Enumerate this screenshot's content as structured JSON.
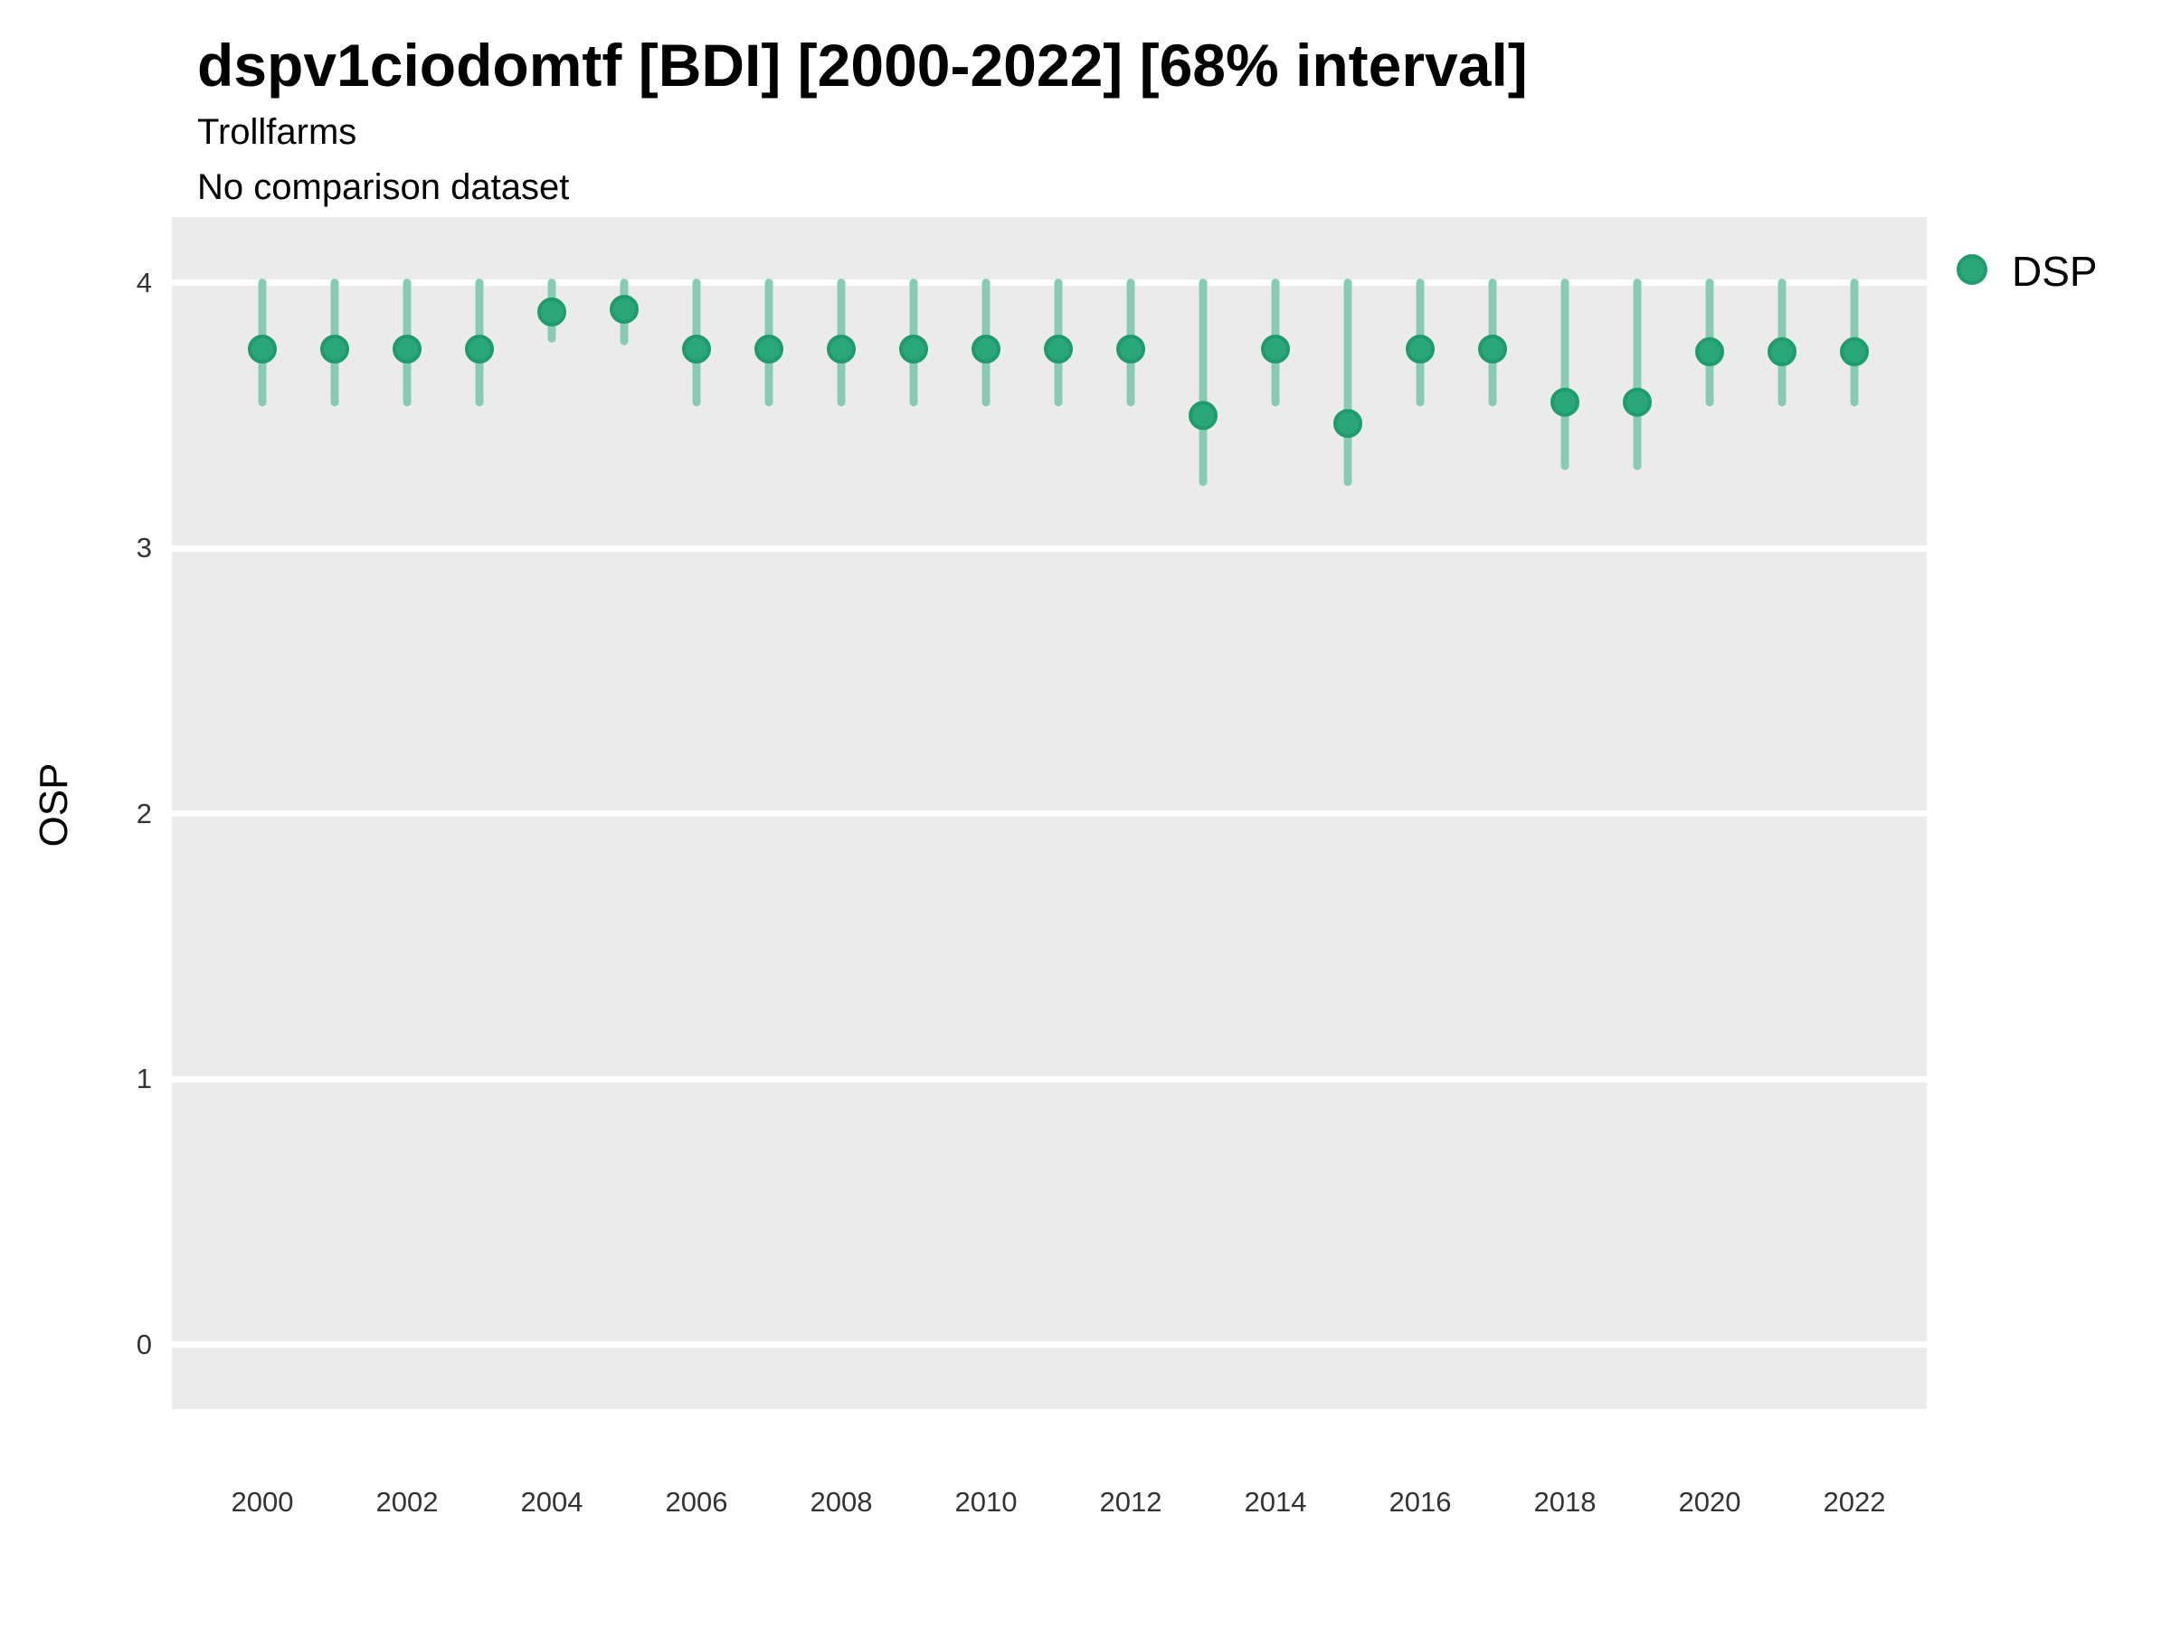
{
  "title": "dspv1ciodomtf [BDI] [2000-2022] [68% interval]",
  "subtitle": "Trollfarms",
  "subtitle2": "No comparison dataset",
  "y_axis": {
    "label": "OSP",
    "ticks": [
      4,
      3,
      2,
      1,
      0
    ]
  },
  "x_axis": {
    "ticks": [
      2000,
      2002,
      2004,
      2006,
      2008,
      2010,
      2012,
      2014,
      2016,
      2018,
      2020,
      2022
    ]
  },
  "legend": {
    "label": "DSP",
    "position": "right"
  },
  "colors": {
    "point_fill": "#2aa77a",
    "point_stroke": "#1e9c6b",
    "interval_bar": "#86cbb2",
    "panel_background": "#ebebeb",
    "gridline": "#ffffff",
    "title_text": "#000000",
    "tick_text": "#333333"
  },
  "chart_data": {
    "type": "scatter",
    "subtype": "pointrange",
    "title": "dspv1ciodomtf [BDI] [2000-2022] [68% interval]",
    "subtitle_lines": [
      "Trollfarms",
      "No comparison dataset"
    ],
    "xlabel": "",
    "ylabel": "OSP",
    "x": [
      2000,
      2001,
      2002,
      2003,
      2004,
      2005,
      2006,
      2007,
      2008,
      2009,
      2010,
      2011,
      2012,
      2013,
      2014,
      2015,
      2016,
      2017,
      2018,
      2019,
      2020,
      2021,
      2022
    ],
    "series": [
      {
        "name": "DSP",
        "values": [
          3.75,
          3.75,
          3.75,
          3.75,
          3.89,
          3.9,
          3.75,
          3.75,
          3.75,
          3.75,
          3.75,
          3.75,
          3.75,
          3.5,
          3.75,
          3.47,
          3.75,
          3.75,
          3.55,
          3.55,
          3.74,
          3.74,
          3.74
        ],
        "lower": [
          3.55,
          3.55,
          3.55,
          3.55,
          3.79,
          3.78,
          3.55,
          3.55,
          3.55,
          3.55,
          3.55,
          3.55,
          3.55,
          3.25,
          3.55,
          3.25,
          3.55,
          3.55,
          3.31,
          3.31,
          3.55,
          3.55,
          3.55
        ],
        "upper": [
          4.0,
          4.0,
          4.0,
          4.0,
          4.0,
          4.0,
          4.0,
          4.0,
          4.0,
          4.0,
          4.0,
          4.0,
          4.0,
          4.0,
          4.0,
          4.0,
          4.0,
          4.0,
          4.0,
          4.0,
          4.0,
          4.0,
          4.0
        ]
      }
    ],
    "interval_label": "68% interval",
    "ylim": [
      -0.25,
      4.25
    ],
    "yticks": [
      0,
      1,
      2,
      3,
      4
    ],
    "xticks": [
      2000,
      2002,
      2004,
      2006,
      2008,
      2010,
      2012,
      2014,
      2016,
      2018,
      2020,
      2022
    ],
    "grid": "major-y",
    "legend_position": "right"
  }
}
